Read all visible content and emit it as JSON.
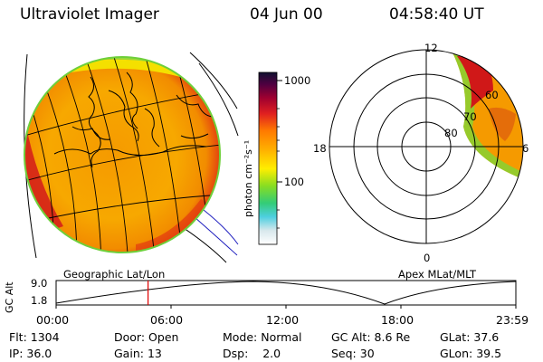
{
  "header": {
    "title": "Ultraviolet Imager",
    "date": "04 Jun 00",
    "time": "04:58:40 UT"
  },
  "colorbar": {
    "ticks": [
      "1000",
      "100"
    ],
    "unit_label": "photon cm⁻²s⁻¹"
  },
  "geo_panel": {
    "caption": "Geographic Lat/Lon"
  },
  "polar_panel": {
    "caption": "Apex MLat/MLT",
    "mlt_labels": {
      "top": "12",
      "left": "18",
      "right": "6",
      "bottom": "0"
    },
    "lat_labels": [
      "60",
      "70",
      "80"
    ]
  },
  "orbit_plot": {
    "ylabel": "GC Alt",
    "y_ticks": [
      "9.0",
      "1.8"
    ],
    "x_ticks": [
      "00:00",
      "06:00",
      "12:00",
      "18:00",
      "23:59"
    ],
    "current_time_fraction": 0.2
  },
  "status": {
    "flt_label": "Flt:",
    "flt_value": "1304",
    "ip_label": "IP:",
    "ip_value": "36.0",
    "door_label": "Door:",
    "door_value": "Open",
    "gain_label": "Gain:",
    "gain_value": "13",
    "mode_label": "Mode:",
    "mode_value": "Normal",
    "dsp_label": "Dsp:",
    "dsp_value": "2.0",
    "gcalt_label": "GC Alt:",
    "gcalt_value": "8.6 Re",
    "seq_label": "Seq:",
    "seq_value": "30",
    "glat_label": "GLat:",
    "glat_value": "37.6",
    "glon_label": "GLon:",
    "glon_value": "39.5"
  }
}
